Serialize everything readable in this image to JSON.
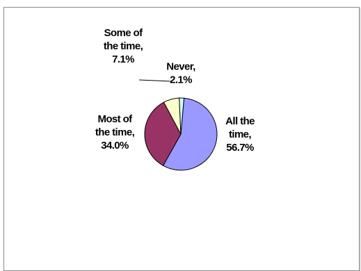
{
  "chart_data": {
    "type": "pie",
    "slices": [
      {
        "label_lines": [
          "All the",
          "time,",
          "56.7%"
        ],
        "value": 56.7,
        "color": "#9999ff"
      },
      {
        "label_lines": [
          "Most of",
          "the time,",
          "34.0%"
        ],
        "value": 34.0,
        "color": "#993366"
      },
      {
        "label_lines": [
          "Some of",
          "the time,",
          "7.1%"
        ],
        "value": 7.1,
        "color": "#ffffcc"
      },
      {
        "label_lines": [
          "Never,",
          "2.1%"
        ],
        "value": 2.1,
        "color": "#ccffff"
      }
    ],
    "legend": "none",
    "border_color": "#8c8c8c"
  }
}
